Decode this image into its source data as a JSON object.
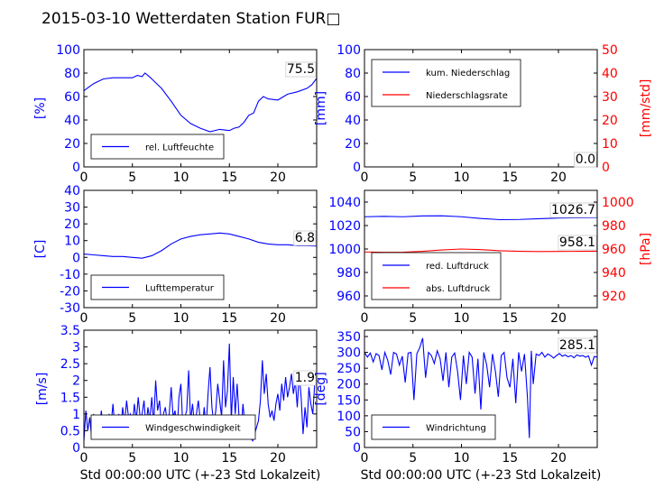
{
  "figure": {
    "title": "2015-03-10 Wetterdaten Station FUR□",
    "xlabel": "Std 00:00:00 UTC (+-23 Std Lokalzeit)",
    "colors": {
      "blue": "#0000ff",
      "red": "#ff0000",
      "black": "#000000"
    }
  },
  "chart_data": [
    {
      "type": "line",
      "name": "humidity",
      "ylabel": "[%]",
      "xlim": [
        0,
        24
      ],
      "ylim": [
        0,
        100
      ],
      "xticks": [
        0,
        5,
        10,
        15,
        20
      ],
      "yticks": [
        0,
        20,
        40,
        60,
        80,
        100
      ],
      "grid": false,
      "legend_position": "lower-left",
      "value_label": "75.5",
      "series": [
        {
          "name": "rel. Luftfeuchte",
          "color": "#0000ff",
          "x": [
            0,
            0.5,
            1,
            1.5,
            2,
            3,
            4,
            5,
            5.5,
            6,
            6.3,
            6.6,
            7,
            8,
            9,
            10,
            11,
            12,
            13,
            14,
            15,
            15.5,
            16,
            16.5,
            17,
            17.5,
            18,
            18.5,
            19,
            20,
            21,
            22,
            23,
            23.5,
            24
          ],
          "y": [
            65,
            68,
            71,
            73,
            75,
            76,
            76,
            76,
            78,
            77,
            80,
            78,
            75,
            67,
            56,
            44,
            37,
            33,
            30,
            32,
            31,
            33,
            34,
            38,
            44,
            46,
            56,
            60,
            58,
            57,
            62,
            64,
            67,
            70,
            75.5
          ]
        }
      ]
    },
    {
      "type": "line",
      "name": "precipitation",
      "ylabel": "[mm]",
      "y2label": "[mm/std]",
      "xlim": [
        0,
        24
      ],
      "ylim": [
        0,
        100
      ],
      "y2lim": [
        0,
        50
      ],
      "xticks": [
        0,
        5,
        10,
        15,
        20
      ],
      "yticks": [
        0,
        20,
        40,
        60,
        80,
        100
      ],
      "y2ticks": [
        0,
        10,
        20,
        30,
        40,
        50
      ],
      "grid": false,
      "legend_position": "upper-left",
      "value_label": "0.0",
      "value_label2": "0.0",
      "series": [
        {
          "name": "kum. Niederschlag",
          "color": "#0000ff",
          "axis": "left",
          "x": [
            0,
            24
          ],
          "y": [
            0,
            0
          ]
        },
        {
          "name": "Niederschlagsrate",
          "color": "#ff0000",
          "axis": "right",
          "x": [
            0,
            24
          ],
          "y": [
            0,
            0
          ]
        }
      ]
    },
    {
      "type": "line",
      "name": "temperature",
      "ylabel": "[C]",
      "xlim": [
        0,
        24
      ],
      "ylim": [
        -30,
        40
      ],
      "xticks": [
        0,
        5,
        10,
        15,
        20
      ],
      "yticks": [
        -30,
        -20,
        -10,
        0,
        10,
        20,
        30,
        40
      ],
      "grid": false,
      "legend_position": "lower-left",
      "value_label": "6.8",
      "series": [
        {
          "name": "Lufttemperatur",
          "color": "#0000ff",
          "x": [
            0,
            1,
            2,
            3,
            4,
            5,
            6,
            7,
            8,
            9,
            10,
            11,
            12,
            13,
            14,
            15,
            16,
            17,
            18,
            19,
            20,
            21,
            22,
            23,
            24
          ],
          "y": [
            2,
            1.5,
            1,
            0.5,
            0.5,
            0,
            -0.5,
            1,
            4,
            8,
            11,
            12.5,
            13.5,
            14,
            14.5,
            14,
            12.5,
            11,
            9,
            8,
            7.5,
            7.5,
            7,
            7,
            6.8
          ]
        }
      ]
    },
    {
      "type": "line",
      "name": "pressure",
      "y2label": "[hPa]",
      "xlim": [
        0,
        24
      ],
      "ylim": [
        950,
        1050
      ],
      "y2lim": [
        910,
        1010
      ],
      "xticks": [
        0,
        5,
        10,
        15,
        20
      ],
      "yticks": [
        960,
        980,
        1000,
        1020,
        1040
      ],
      "y2ticks": [
        920,
        940,
        960,
        980,
        1000
      ],
      "grid": false,
      "legend_position": "lower-left",
      "value_label": "1026.7",
      "value_label2": "958.1",
      "series": [
        {
          "name": "red. Luftdruck",
          "color": "#0000ff",
          "axis": "left",
          "x": [
            0,
            2,
            4,
            6,
            8,
            10,
            12,
            14,
            16,
            18,
            20,
            22,
            24
          ],
          "y": [
            1027.5,
            1027.8,
            1027.5,
            1028.2,
            1028.3,
            1027.5,
            1026,
            1025,
            1025.2,
            1025.8,
            1026.4,
            1026.6,
            1026.7
          ]
        },
        {
          "name": "abs. Luftdruck",
          "color": "#ff0000",
          "axis": "right",
          "x": [
            0,
            2,
            4,
            6,
            8,
            10,
            12,
            14,
            16,
            18,
            20,
            22,
            24
          ],
          "y": [
            957.5,
            957.2,
            957.3,
            958,
            959.2,
            960,
            959.5,
            958.5,
            958,
            957.8,
            957.9,
            958,
            958.1
          ]
        }
      ]
    },
    {
      "type": "line",
      "name": "wind-speed",
      "ylabel": "[m/s]",
      "xlim": [
        0,
        24
      ],
      "ylim": [
        0,
        3.5
      ],
      "xticks": [
        0,
        5,
        10,
        15,
        20
      ],
      "yticks": [
        0,
        0.5,
        1,
        1.5,
        2,
        2.5,
        3,
        3.5
      ],
      "grid": false,
      "legend_position": "lower-left",
      "value_label": "1.9",
      "series": [
        {
          "name": "Windgeschwindigkeit",
          "color": "#0000ff",
          "x": [
            0,
            0.2,
            0.4,
            0.6,
            0.8,
            1,
            1.2,
            1.4,
            1.6,
            1.8,
            2,
            2.2,
            2.4,
            2.6,
            2.8,
            3,
            3.2,
            3.4,
            3.6,
            3.8,
            4,
            4.2,
            4.4,
            4.6,
            4.8,
            5,
            5.2,
            5.4,
            5.6,
            5.8,
            6,
            6.2,
            6.4,
            6.6,
            6.8,
            7,
            7.2,
            7.4,
            7.6,
            7.8,
            8,
            8.2,
            8.4,
            8.6,
            8.8,
            9,
            9.2,
            9.4,
            9.6,
            9.8,
            10,
            10.2,
            10.4,
            10.6,
            10.8,
            11,
            11.2,
            11.4,
            11.6,
            11.8,
            12,
            12.2,
            12.4,
            12.6,
            12.8,
            13,
            13.2,
            13.4,
            13.6,
            13.8,
            14,
            14.2,
            14.4,
            14.6,
            14.8,
            15,
            15.2,
            15.4,
            15.6,
            15.8,
            16,
            16.2,
            16.4,
            16.6,
            16.8,
            17,
            17.2,
            17.4,
            17.6,
            17.8,
            18,
            18.2,
            18.4,
            18.6,
            18.8,
            19,
            19.2,
            19.4,
            19.6,
            19.8,
            20,
            20.2,
            20.4,
            20.6,
            20.8,
            21,
            21.2,
            21.4,
            21.6,
            21.8,
            22,
            22.2,
            22.4,
            22.6,
            22.8,
            23,
            23.2,
            23.4,
            23.6,
            23.8,
            24
          ],
          "y": [
            0.2,
            1.1,
            0.5,
            0.9,
            0.3,
            1.0,
            0.4,
            0.8,
            0.6,
            1.1,
            0.4,
            0.9,
            0.5,
            1.0,
            0.7,
            1.3,
            0.5,
            0.8,
            1.0,
            0.6,
            1.2,
            0.7,
            1.4,
            0.9,
            1.0,
            0.6,
            1.3,
            0.8,
            1.5,
            0.9,
            1.0,
            1.4,
            0.6,
            1.2,
            0.8,
            1.5,
            0.7,
            2.0,
            1.1,
            1.4,
            0.6,
            1.0,
            1.2,
            0.7,
            1.0,
            1.8,
            0.9,
            1.1,
            0.4,
            1.5,
            1.9,
            0.6,
            0.9,
            1.1,
            2.3,
            0.8,
            1.3,
            0.7,
            1.0,
            1.4,
            0.8,
            0.5,
            1.2,
            0.6,
            1.6,
            2.4,
            1.2,
            0.7,
            1.1,
            1.9,
            1.4,
            0.9,
            2.6,
            1.2,
            1.7,
            3.1,
            0.8,
            2.1,
            1.0,
            1.9,
            0.9,
            0.5,
            1.3,
            0.7,
            0.4,
            0.6,
            0.3,
            0.2,
            0.4,
            0.6,
            0.8,
            1.4,
            2.6,
            1.6,
            2.2,
            1.3,
            0.9,
            1.1,
            0.8,
            1.3,
            1.6,
            1.1,
            1.9,
            1.4,
            2.1,
            1.5,
            1.8,
            2.2,
            1.6,
            2.0,
            1.2,
            2.2,
            1.5,
            0.4,
            1.2,
            0.6,
            1.8,
            1.3,
            1.0,
            1.9,
            1.9
          ]
        }
      ]
    },
    {
      "type": "line",
      "name": "wind-direction",
      "ylabel": "[deg]",
      "xlim": [
        0,
        24
      ],
      "ylim": [
        0,
        370
      ],
      "xticks": [
        0,
        5,
        10,
        15,
        20
      ],
      "yticks": [
        0,
        50,
        100,
        150,
        200,
        250,
        300,
        350
      ],
      "grid": false,
      "legend_position": "lower-left",
      "value_label": "285.1",
      "series": [
        {
          "name": "Windrichtung",
          "color": "#0000ff",
          "x": [
            0,
            0.3,
            0.6,
            0.9,
            1.2,
            1.5,
            1.8,
            2.1,
            2.4,
            2.7,
            3,
            3.3,
            3.6,
            3.9,
            4.2,
            4.5,
            4.8,
            5.1,
            5.4,
            5.7,
            6,
            6.3,
            6.6,
            6.9,
            7.2,
            7.5,
            7.8,
            8.1,
            8.4,
            8.7,
            9,
            9.3,
            9.6,
            9.9,
            10.2,
            10.5,
            10.8,
            11.1,
            11.4,
            11.7,
            12,
            12.3,
            12.6,
            12.9,
            13.2,
            13.5,
            13.8,
            14.1,
            14.4,
            14.7,
            15,
            15.3,
            15.6,
            15.9,
            16.2,
            16.5,
            16.8,
            17,
            17.2,
            17.4,
            17.7,
            18,
            18.3,
            18.6,
            18.9,
            19.2,
            19.5,
            19.8,
            20.1,
            20.4,
            20.7,
            21,
            21.3,
            21.6,
            21.9,
            22.2,
            22.5,
            22.8,
            23.1,
            23.4,
            23.7,
            24
          ],
          "y": [
            300,
            285,
            298,
            270,
            296,
            290,
            245,
            300,
            275,
            230,
            300,
            295,
            260,
            288,
            205,
            298,
            300,
            150,
            296,
            315,
            345,
            220,
            300,
            290,
            265,
            305,
            280,
            210,
            300,
            190,
            285,
            298,
            240,
            150,
            290,
            200,
            300,
            285,
            170,
            280,
            120,
            300,
            260,
            190,
            295,
            240,
            160,
            290,
            300,
            220,
            190,
            280,
            140,
            300,
            240,
            295,
            160,
            30,
            305,
            200,
            295,
            290,
            300,
            285,
            295,
            290,
            282,
            290,
            296,
            288,
            292,
            286,
            290,
            283,
            292,
            288,
            290,
            285,
            289,
            260,
            287,
            285.1
          ]
        }
      ]
    }
  ]
}
